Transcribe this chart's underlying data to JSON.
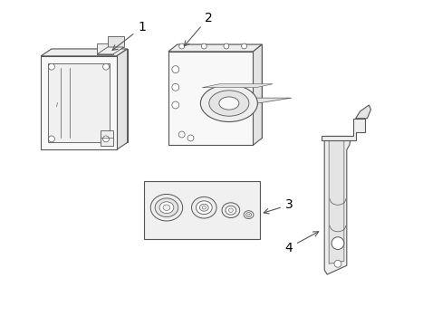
{
  "background_color": "#ffffff",
  "line_color": "#555555",
  "label_color": "#000000",
  "comp1_label": "1",
  "comp2_label": "2",
  "comp3_label": "3",
  "comp4_label": "4"
}
